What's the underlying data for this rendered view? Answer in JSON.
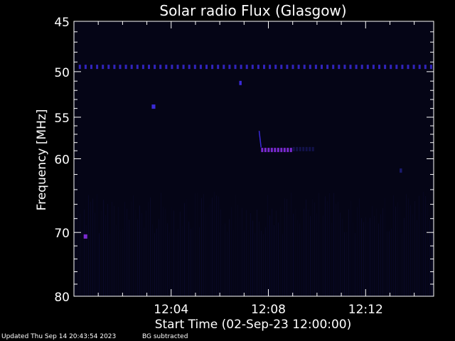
{
  "chart_data": {
    "type": "heatmap",
    "title": "Solar radio Flux (Glasgow)",
    "xlabel": "Start Time (02-Sep-23 12:00:00)",
    "ylabel": "Frequency [MHz]",
    "x_unit": "minutes after 12:00:00",
    "xlim": [
      0,
      14.8
    ],
    "ylim": [
      45,
      80
    ],
    "y_scale": "log",
    "y_ticks": [
      45,
      50,
      55,
      60,
      70,
      80
    ],
    "x_ticks": [
      {
        "value": 4,
        "label": "12:04"
      },
      {
        "value": 8,
        "label": "12:08"
      },
      {
        "value": 12,
        "label": "12:12"
      }
    ],
    "colors": {
      "background": "#000000",
      "plot_bg": "#050516",
      "axes": "#ffffff",
      "low": "#1a1a6e",
      "mid": "#3a2ad8",
      "high": "#7a2ad0"
    },
    "features": [
      {
        "name": "band",
        "freq_mhz": 49.5,
        "x_start": 0.2,
        "x_end": 14.8,
        "intensity": 0.75,
        "dashed": true
      },
      {
        "name": "burst",
        "freq_mhz": 58.9,
        "x_start": 7.7,
        "x_end": 9.0,
        "intensity": 0.9,
        "dashed": true
      },
      {
        "name": "burst-tail",
        "freq_mhz": 58.8,
        "x_start": 9.0,
        "x_end": 9.9,
        "intensity": 0.5,
        "dashed": true
      },
      {
        "name": "drift",
        "freq_mhz_start": 56.6,
        "freq_mhz_end": 58.6,
        "x_start": 7.62,
        "x_end": 7.7,
        "intensity": 0.8
      },
      {
        "name": "spot",
        "freq_mhz": 53.8,
        "x_start": 3.2,
        "x_end": 3.35,
        "intensity": 0.8
      },
      {
        "name": "spot",
        "freq_mhz": 51.2,
        "x_start": 6.8,
        "x_end": 6.9,
        "intensity": 0.6
      },
      {
        "name": "spot",
        "freq_mhz": 70.6,
        "x_start": 0.4,
        "x_end": 0.55,
        "intensity": 0.95
      },
      {
        "name": "spot",
        "freq_mhz": 61.5,
        "x_start": 13.4,
        "x_end": 13.5,
        "intensity": 0.4
      }
    ]
  },
  "footer": {
    "updated": "Updated Thu Sep 14 20:43:54 2023",
    "note": "BG subtracted"
  }
}
